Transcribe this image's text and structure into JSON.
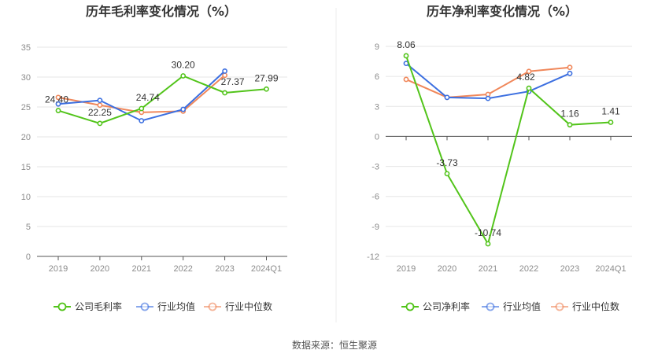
{
  "source_text": "数据来源：恒生聚源",
  "chart_data": [
    {
      "type": "line",
      "title": "历年毛利率变化情况（%）",
      "categories": [
        "2019",
        "2020",
        "2021",
        "2022",
        "2023",
        "2024Q1"
      ],
      "yticks": [
        "35",
        "30",
        "25",
        "20",
        "15",
        "10",
        "5",
        "0"
      ],
      "ylim": [
        0,
        35
      ],
      "grid": true,
      "legend_position": "bottom",
      "series": [
        {
          "name": "公司毛利率",
          "color": "#52c41a",
          "values": [
            24.4,
            22.25,
            24.74,
            30.2,
            27.37,
            27.99
          ],
          "labels": [
            "24.40",
            "22.25",
            "24.74",
            "30.20",
            "27.37",
            "27.99"
          ]
        },
        {
          "name": "行业均值",
          "color": "#3c6fe0",
          "values": [
            25.5,
            26.1,
            22.7,
            24.6,
            31.0,
            null
          ]
        },
        {
          "name": "行业中位数",
          "color": "#f0875a",
          "values": [
            26.6,
            25.3,
            24.1,
            24.3,
            30.3,
            null
          ]
        }
      ]
    },
    {
      "type": "line",
      "title": "历年净利率变化情况（%）",
      "categories": [
        "2019",
        "2020",
        "2021",
        "2022",
        "2023",
        "2024Q1"
      ],
      "yticks": [
        "9",
        "6",
        "3",
        "0",
        "-3",
        "-6",
        "-9",
        "-12"
      ],
      "ylim": [
        -12,
        9
      ],
      "grid": true,
      "legend_position": "bottom",
      "series": [
        {
          "name": "公司净利率",
          "color": "#52c41a",
          "values": [
            8.06,
            -3.73,
            -10.74,
            4.82,
            1.16,
            1.41
          ],
          "labels": [
            "8.06",
            "-3.73",
            "-10.74",
            "4.82",
            "1.16",
            "1.41"
          ]
        },
        {
          "name": "行业均值",
          "color": "#3c6fe0",
          "values": [
            7.3,
            3.9,
            3.8,
            4.5,
            6.3,
            null
          ]
        },
        {
          "name": "行业中位数",
          "color": "#f0875a",
          "values": [
            5.7,
            3.9,
            4.2,
            6.5,
            6.9,
            null
          ]
        }
      ]
    }
  ]
}
